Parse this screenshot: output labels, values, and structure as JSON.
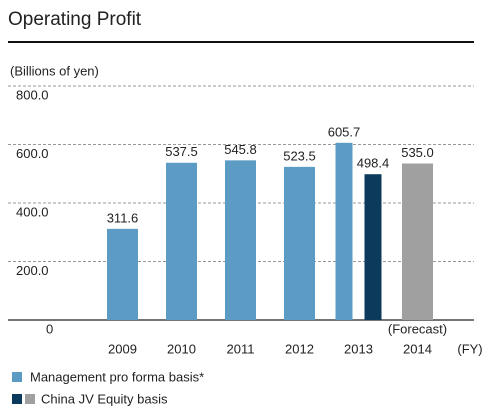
{
  "chart_data": {
    "type": "bar",
    "title": "Operating Profit",
    "y_label": "(Billions of yen)",
    "x_label": "(FY)",
    "annotation": "(Forecast)",
    "categories": [
      "2009",
      "2010",
      "2011",
      "2012",
      "2013",
      "2014"
    ],
    "series": [
      {
        "name": "Management pro forma basis*",
        "color": "#5b9bc4",
        "values": [
          311.6,
          537.5,
          545.8,
          523.5,
          605.7,
          null
        ]
      },
      {
        "name": "China JV Equity basis",
        "color": "#0b3a5c",
        "forecast_color": "#a0a0a0",
        "values": [
          null,
          null,
          null,
          null,
          498.4,
          535.0
        ],
        "value_labels": [
          null,
          null,
          null,
          null,
          "498.4",
          "535.0"
        ]
      }
    ],
    "ylim": [
      0,
      800
    ],
    "yticks": [
      0,
      {
        "value": 200,
        "label": "200.0"
      },
      {
        "value": 400,
        "label": "400.0"
      },
      {
        "value": 600,
        "label": "600.0"
      },
      {
        "value": 800,
        "label": "800.0"
      }
    ],
    "grid": true
  }
}
